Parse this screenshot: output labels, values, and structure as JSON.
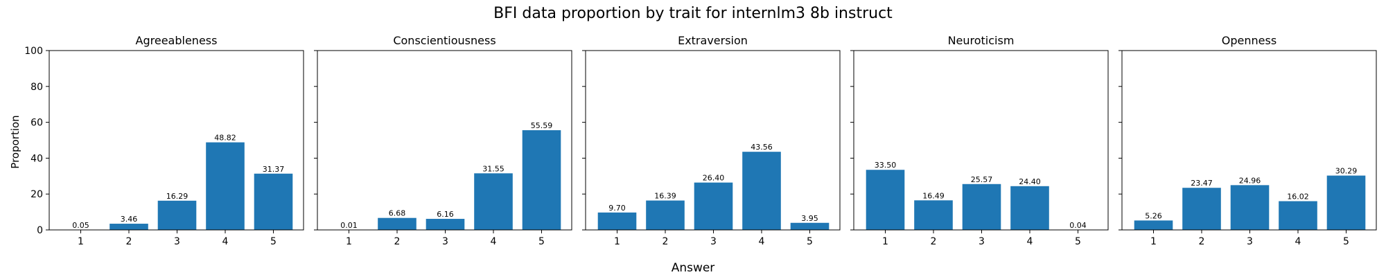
{
  "title": "BFI data proportion by trait for internlm3 8b instruct",
  "xlabel": "Answer",
  "ylabel": "Proportion",
  "bar_color": "#1f77b4",
  "chart_data": [
    {
      "type": "bar",
      "title": "Agreeableness",
      "categories": [
        "1",
        "2",
        "3",
        "4",
        "5"
      ],
      "values": [
        0.05,
        3.46,
        16.29,
        48.82,
        31.37
      ],
      "labels": [
        "0.05",
        "3.46",
        "16.29",
        "48.82",
        "31.37"
      ],
      "ylim": [
        0,
        100
      ],
      "yticks": [
        "0",
        "20",
        "40",
        "60",
        "80",
        "100"
      ]
    },
    {
      "type": "bar",
      "title": "Conscientiousness",
      "categories": [
        "1",
        "2",
        "3",
        "4",
        "5"
      ],
      "values": [
        0.01,
        6.68,
        6.16,
        31.55,
        55.59
      ],
      "labels": [
        "0.01",
        "6.68",
        "6.16",
        "31.55",
        "55.59"
      ],
      "ylim": [
        0,
        100
      ]
    },
    {
      "type": "bar",
      "title": "Extraversion",
      "categories": [
        "1",
        "2",
        "3",
        "4",
        "5"
      ],
      "values": [
        9.7,
        16.39,
        26.4,
        43.56,
        3.95
      ],
      "labels": [
        "9.70",
        "16.39",
        "26.40",
        "43.56",
        "3.95"
      ],
      "ylim": [
        0,
        100
      ]
    },
    {
      "type": "bar",
      "title": "Neuroticism",
      "categories": [
        "1",
        "2",
        "3",
        "4",
        "5"
      ],
      "values": [
        33.5,
        16.49,
        25.57,
        24.4,
        0.04
      ],
      "labels": [
        "33.50",
        "16.49",
        "25.57",
        "24.40",
        "0.04"
      ],
      "ylim": [
        0,
        100
      ]
    },
    {
      "type": "bar",
      "title": "Openness",
      "categories": [
        "1",
        "2",
        "3",
        "4",
        "5"
      ],
      "values": [
        5.26,
        23.47,
        24.96,
        16.02,
        30.29
      ],
      "labels": [
        "5.26",
        "23.47",
        "24.96",
        "16.02",
        "30.29"
      ],
      "ylim": [
        0,
        100
      ]
    }
  ]
}
